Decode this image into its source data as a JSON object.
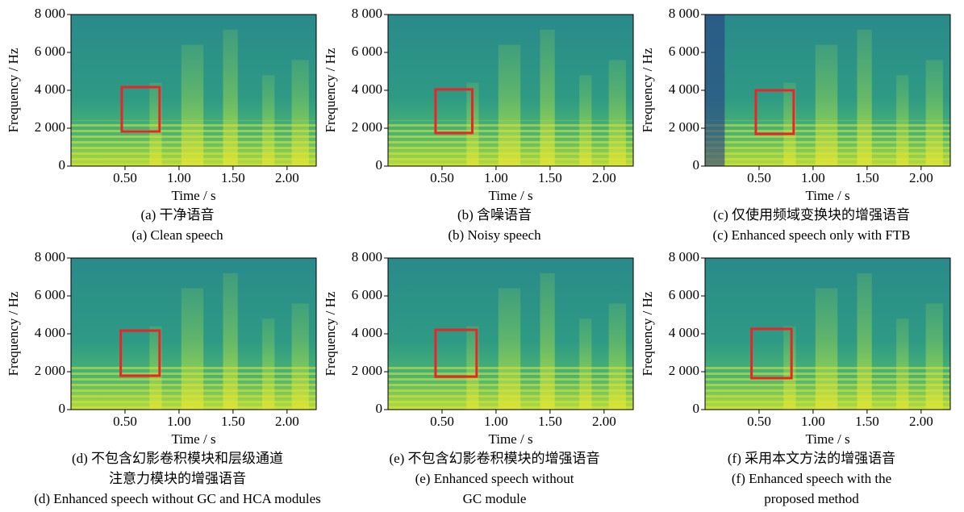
{
  "chart_data": [
    {
      "type": "spectrogram",
      "xlabel": "Time / s",
      "ylabel": "Frequency / Hz",
      "caption_cn": [
        "(a) 干净语音"
      ],
      "caption_en": [
        "(a) Clean speech"
      ],
      "xlim": [
        0,
        2.27
      ],
      "ylim": [
        0,
        8000
      ],
      "xticks": [
        {
          "value": 0.5,
          "label": "0.50"
        },
        {
          "value": 1,
          "label": "1.00"
        },
        {
          "value": 1.5,
          "label": "1.50"
        },
        {
          "value": 2,
          "label": "2.00"
        }
      ],
      "yticks": [
        0,
        {
          "value": 2000,
          "label": "2 000"
        },
        {
          "value": 4000,
          "label": "4 000"
        },
        {
          "value": 6000,
          "label": "6 000"
        },
        {
          "value": 8000,
          "label": "8 000"
        }
      ],
      "highlight_box": {
        "color": "#e8262a",
        "xlim": [
          0.47,
          0.82
        ],
        "ylim": [
          1830,
          4170
        ]
      }
    },
    {
      "type": "spectrogram",
      "xlabel": "Time / s",
      "ylabel": "Frequency / Hz",
      "caption_cn": [
        "(b) 含噪语音"
      ],
      "caption_en": [
        "(b) Noisy speech"
      ],
      "xlim": [
        0,
        2.27
      ],
      "ylim": [
        0,
        8000
      ],
      "xticks": [
        {
          "value": 0.5,
          "label": "0.50"
        },
        {
          "value": 1,
          "label": "1.00"
        },
        {
          "value": 1.5,
          "label": "1.50"
        },
        {
          "value": 2,
          "label": "2.00"
        }
      ],
      "yticks": [
        0,
        {
          "value": 2000,
          "label": "2 000"
        },
        {
          "value": 4000,
          "label": "4 000"
        },
        {
          "value": 6000,
          "label": "6 000"
        },
        {
          "value": 8000,
          "label": "8 000"
        }
      ],
      "highlight_box": {
        "color": "#e8262a",
        "xlim": [
          0.44,
          0.78
        ],
        "ylim": [
          1750,
          4050
        ]
      }
    },
    {
      "type": "spectrogram",
      "xlabel": "Time / s",
      "ylabel": "Frequency / Hz",
      "caption_cn": [
        "(c) 仅使用频域变换块的增强语音"
      ],
      "caption_en": [
        "(c) Enhanced speech only with FTB"
      ],
      "xlim": [
        0,
        2.27
      ],
      "ylim": [
        0,
        8000
      ],
      "xticks": [
        {
          "value": 0.5,
          "label": "0.50"
        },
        {
          "value": 1,
          "label": "1.00"
        },
        {
          "value": 1.5,
          "label": "1.50"
        },
        {
          "value": 2,
          "label": "2.00"
        }
      ],
      "yticks": [
        0,
        {
          "value": 2000,
          "label": "2 000"
        },
        {
          "value": 4000,
          "label": "4 000"
        },
        {
          "value": 6000,
          "label": "6 000"
        },
        {
          "value": 8000,
          "label": "8 000"
        }
      ],
      "highlight_box": {
        "color": "#e8262a",
        "xlim": [
          0.47,
          0.82
        ],
        "ylim": [
          1700,
          4000
        ]
      }
    },
    {
      "type": "spectrogram",
      "xlabel": "Time / s",
      "ylabel": "Frequency / Hz",
      "caption_cn": [
        "(d) 不包含幻影卷积模块和层级通道",
        "注意力模块的增强语音"
      ],
      "caption_en": [
        "(d) Enhanced speech without GC and HCA modules"
      ],
      "xlim": [
        0,
        2.27
      ],
      "ylim": [
        0,
        8000
      ],
      "xticks": [
        {
          "value": 0.5,
          "label": "0.50"
        },
        {
          "value": 1,
          "label": "1.00"
        },
        {
          "value": 1.5,
          "label": "1.50"
        },
        {
          "value": 2,
          "label": "2.00"
        }
      ],
      "yticks": [
        0,
        {
          "value": 2000,
          "label": "2 000"
        },
        {
          "value": 4000,
          "label": "4 000"
        },
        {
          "value": 6000,
          "label": "6 000"
        },
        {
          "value": 8000,
          "label": "8 000"
        }
      ],
      "highlight_box": {
        "color": "#e8262a",
        "xlim": [
          0.46,
          0.82
        ],
        "ylim": [
          1790,
          4170
        ]
      }
    },
    {
      "type": "spectrogram",
      "xlabel": "Time / s",
      "ylabel": "Frequency / Hz",
      "caption_cn": [
        "(e) 不包含幻影卷积模块的增强语音"
      ],
      "caption_en": [
        "(e) Enhanced speech without",
        "GC module"
      ],
      "xlim": [
        0,
        2.27
      ],
      "ylim": [
        0,
        8000
      ],
      "xticks": [
        {
          "value": 0.5,
          "label": "0.50"
        },
        {
          "value": 1,
          "label": "1.00"
        },
        {
          "value": 1.5,
          "label": "1.50"
        },
        {
          "value": 2,
          "label": "2.00"
        }
      ],
      "yticks": [
        0,
        {
          "value": 2000,
          "label": "2 000"
        },
        {
          "value": 4000,
          "label": "4 000"
        },
        {
          "value": 6000,
          "label": "6 000"
        },
        {
          "value": 8000,
          "label": "8 000"
        }
      ],
      "highlight_box": {
        "color": "#e8262a",
        "xlim": [
          0.44,
          0.82
        ],
        "ylim": [
          1740,
          4210
        ]
      }
    },
    {
      "type": "spectrogram",
      "xlabel": "Time / s",
      "ylabel": "Frequency / Hz",
      "caption_cn": [
        "(f) 采用本文方法的增强语音"
      ],
      "caption_en": [
        "(f) Enhanced speech with the",
        "proposed method"
      ],
      "xlim": [
        0,
        2.27
      ],
      "ylim": [
        0,
        8000
      ],
      "xticks": [
        {
          "value": 0.5,
          "label": "0.50"
        },
        {
          "value": 1,
          "label": "1.00"
        },
        {
          "value": 1.5,
          "label": "1.50"
        },
        {
          "value": 2,
          "label": "2.00"
        }
      ],
      "yticks": [
        0,
        {
          "value": 2000,
          "label": "2 000"
        },
        {
          "value": 4000,
          "label": "4 000"
        },
        {
          "value": 6000,
          "label": "6 000"
        },
        {
          "value": 8000,
          "label": "8 000"
        }
      ],
      "highlight_box": {
        "color": "#e8262a",
        "xlim": [
          0.43,
          0.8
        ],
        "ylim": [
          1660,
          4260
        ]
      }
    }
  ]
}
